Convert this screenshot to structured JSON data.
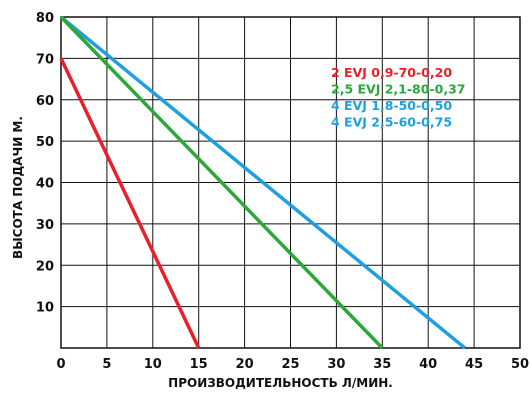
{
  "chart_data": {
    "type": "line",
    "xlabel": "ПРОИЗВОДИТЕЛЬНОСТЬ Л/МИН.",
    "ylabel": "ВЫСОТА ПОДАЧИ М.",
    "xlim": [
      0,
      50
    ],
    "ylim": [
      0,
      80
    ],
    "x_ticks": [
      "0",
      "5",
      "10",
      "15",
      "20",
      "25",
      "30",
      "35",
      "40",
      "45",
      "50"
    ],
    "y_ticks": [
      "10",
      "20",
      "30",
      "40",
      "50",
      "60",
      "70",
      "80"
    ],
    "grid": true,
    "legend_position": "top-right",
    "series": [
      {
        "name": "2 EVJ 0,9-70-0,20",
        "color": "#e8202a",
        "x": [
          0,
          15
        ],
        "y": [
          70,
          0
        ]
      },
      {
        "name": "2,5 EVJ 2,1-80-0,37",
        "color": "#2aa839",
        "x": [
          0,
          35
        ],
        "y": [
          80,
          0
        ]
      },
      {
        "name": "4 EVJ 1,8-50-0,50",
        "color": "#1ea0e0",
        "x": [
          0,
          44
        ],
        "y": [
          80,
          0
        ]
      },
      {
        "name": "4 EVJ 2,5-60-0,75",
        "color": "#1ea0e0",
        "x": [
          0,
          44
        ],
        "y": [
          80,
          0
        ]
      }
    ]
  }
}
